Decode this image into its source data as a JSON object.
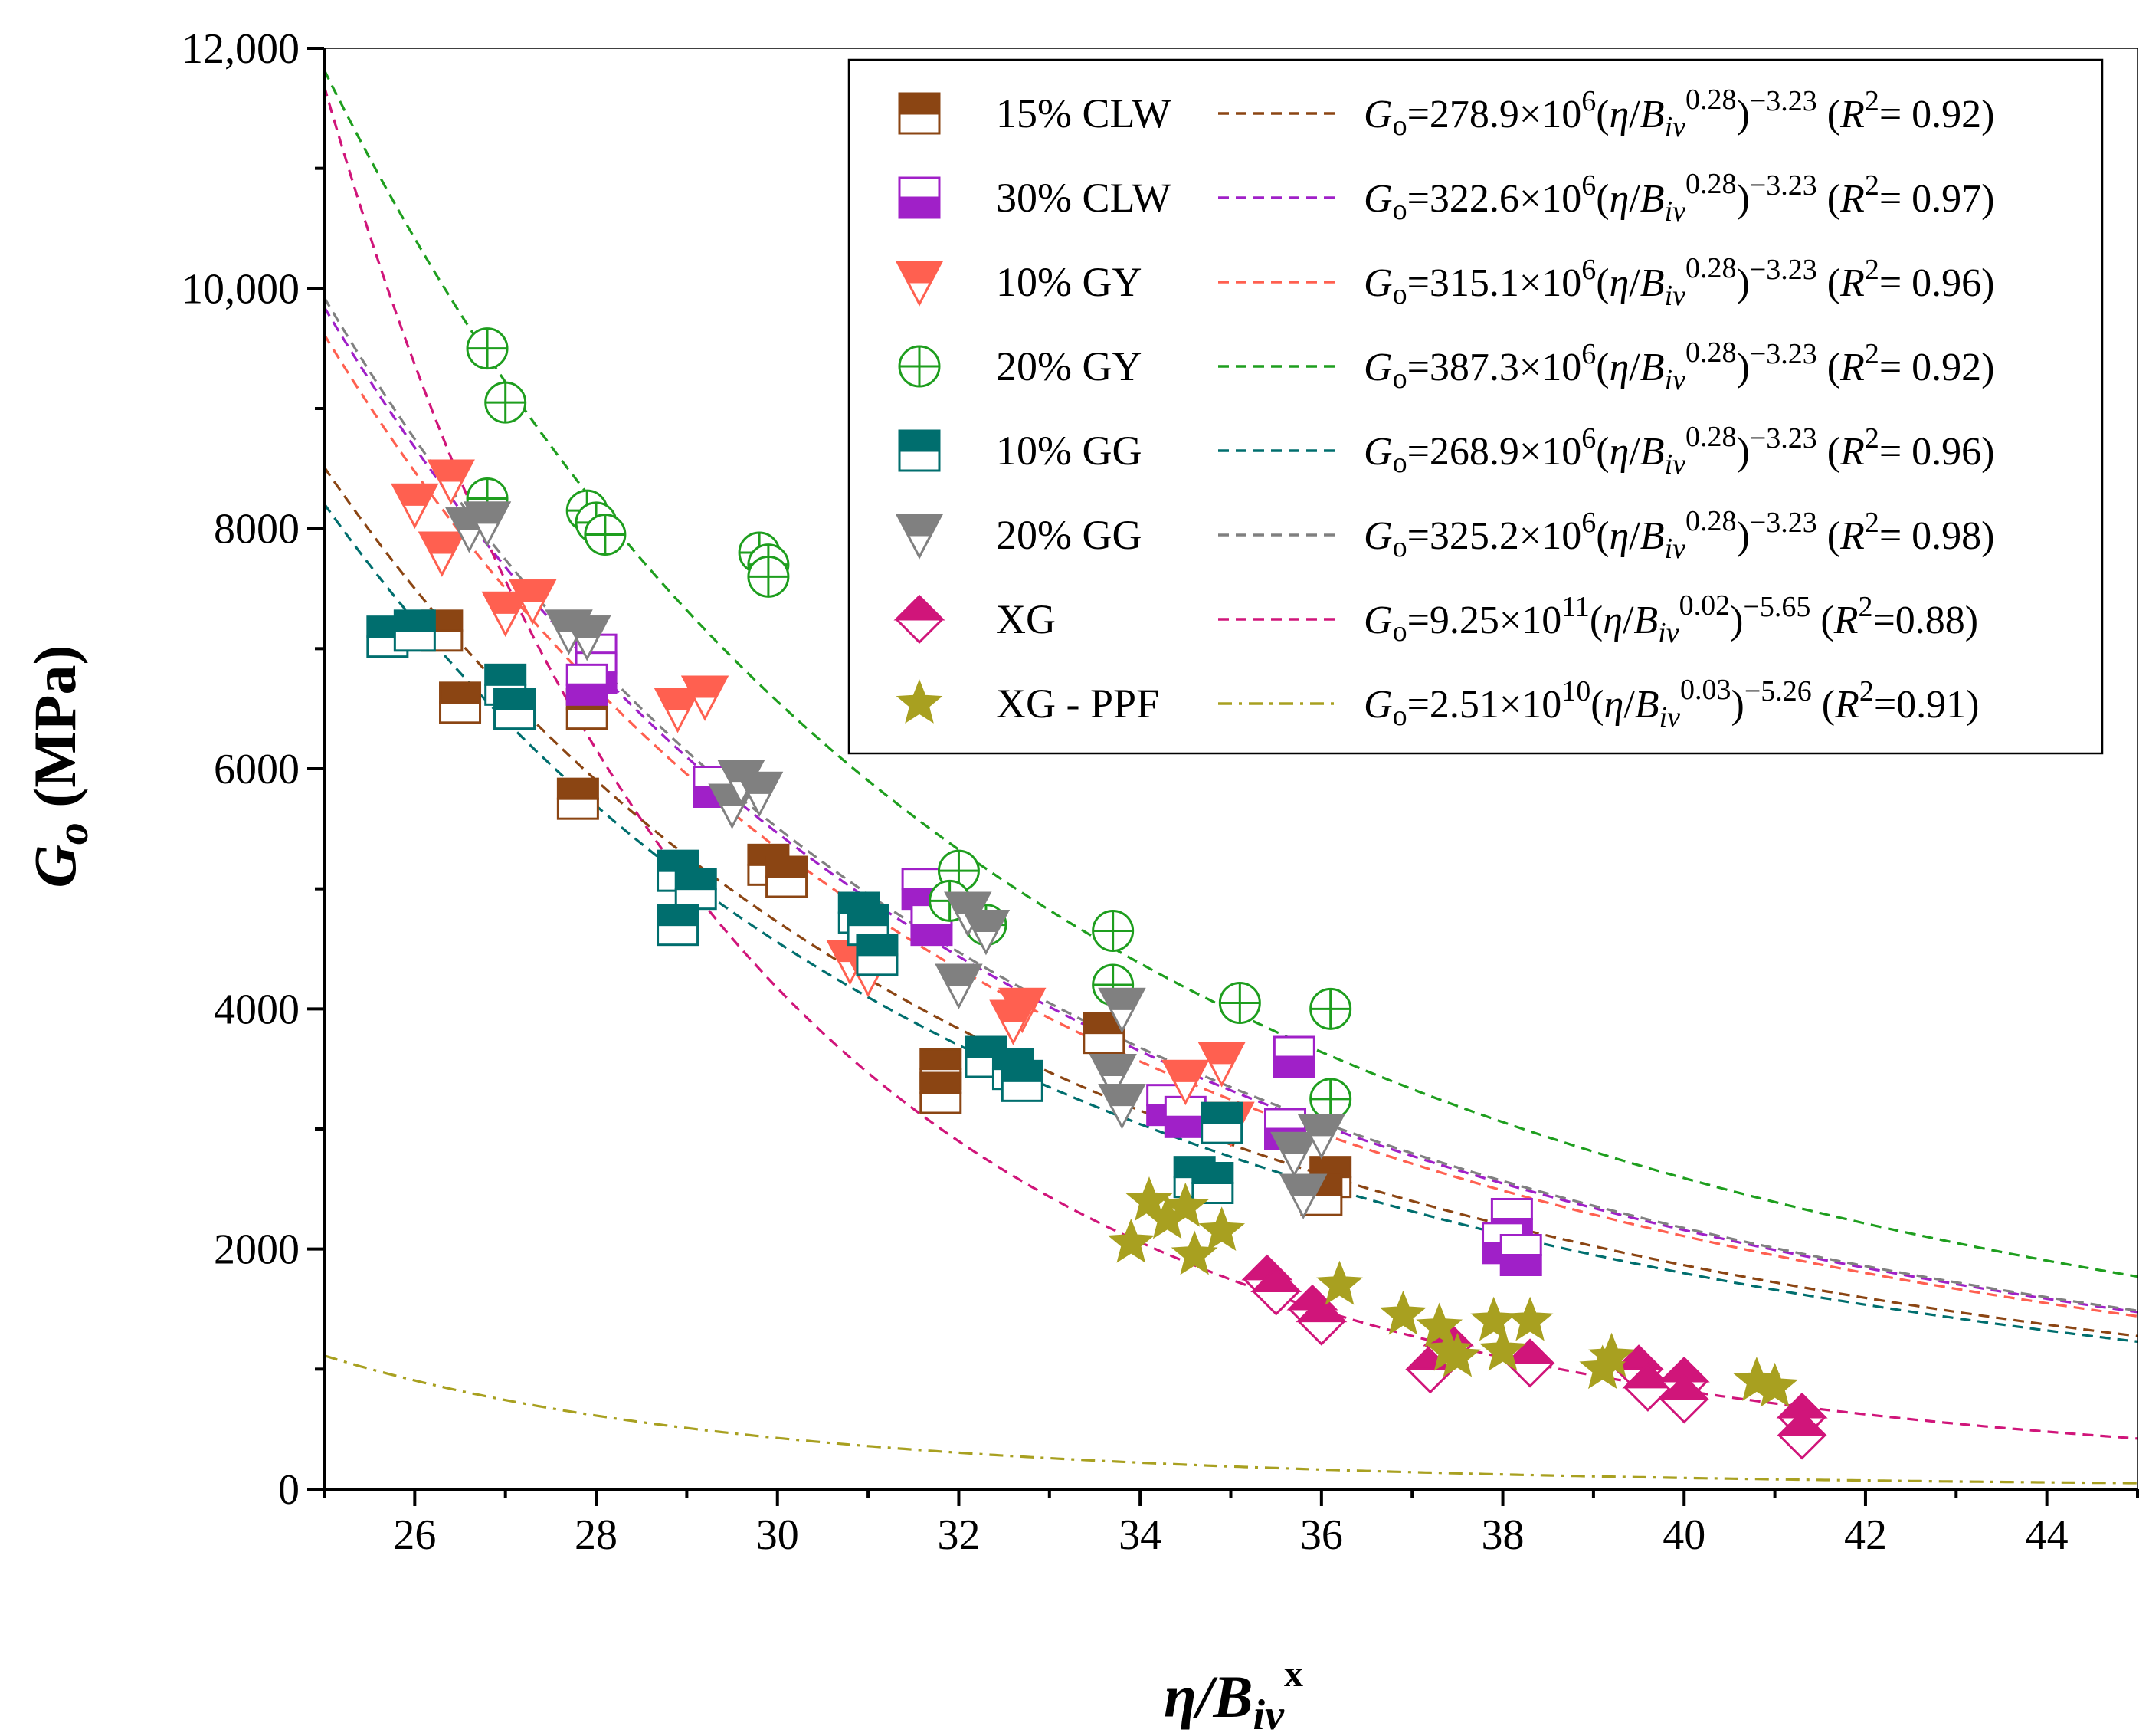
{
  "chart_data": {
    "type": "scatter",
    "title": "",
    "xlabel": "η/B_iv^x",
    "ylabel": "G_o (MPa)",
    "xlim": [
      25,
      45
    ],
    "ylim": [
      0,
      12000
    ],
    "xticks": [
      "26",
      "28",
      "30",
      "32",
      "34",
      "36",
      "38",
      "40",
      "42",
      "44"
    ],
    "yticks": [
      "0",
      "2000",
      "4000",
      "6000",
      "8000",
      "10,000",
      "12,000"
    ],
    "legend_position": "top-right",
    "series": [
      {
        "name": "15% CLW",
        "color": "#8B4513",
        "marker": "square-half",
        "coef": 278900000.0,
        "exp": -3.23,
        "equation": "Go=278.9×10^6(η/Biv^0.28)^-3.23",
        "r2": "(R²= 0.92)",
        "points": [
          [
            26.3,
            7150
          ],
          [
            26.5,
            6550
          ],
          [
            27.9,
            6500
          ],
          [
            27.8,
            5750
          ],
          [
            29.9,
            5200
          ],
          [
            30.1,
            5100
          ],
          [
            31.8,
            3500
          ],
          [
            31.8,
            3300
          ],
          [
            33.6,
            3800
          ],
          [
            36.1,
            2600
          ],
          [
            36.0,
            2450
          ]
        ]
      },
      {
        "name": "30% CLW",
        "color": "#A020C8",
        "marker": "square-half-bottom",
        "coef": 322600000.0,
        "exp": -3.23,
        "equation": "Go=322.6×10^6(η/Biv^0.28)^-3.23",
        "r2": "(R²= 0.97)",
        "points": [
          [
            28.0,
            6950
          ],
          [
            28.0,
            6800
          ],
          [
            27.9,
            6700
          ],
          [
            29.3,
            5850
          ],
          [
            31.6,
            5000
          ],
          [
            31.7,
            4700
          ],
          [
            34.3,
            3200
          ],
          [
            34.5,
            3100
          ],
          [
            35.7,
            3600
          ],
          [
            35.6,
            3000
          ],
          [
            38.1,
            2250
          ],
          [
            38.0,
            2050
          ],
          [
            38.2,
            1950
          ]
        ]
      },
      {
        "name": "10% GY",
        "color": "#FF6050",
        "marker": "triangle-down-half",
        "coef": 315100000.0,
        "exp": -3.23,
        "equation": "Go=315.1×10^6(η/Biv^0.28)^-3.23",
        "r2": "(R²= 0.96)",
        "points": [
          [
            26.0,
            8200
          ],
          [
            26.4,
            8400
          ],
          [
            26.3,
            7800
          ],
          [
            27.0,
            7300
          ],
          [
            27.3,
            7400
          ],
          [
            28.9,
            6500
          ],
          [
            29.2,
            6600
          ],
          [
            30.8,
            4400
          ],
          [
            31.0,
            4300
          ],
          [
            32.7,
            4000
          ],
          [
            32.6,
            3900
          ],
          [
            34.5,
            3400
          ],
          [
            34.9,
            3550
          ],
          [
            35.0,
            3050
          ]
        ]
      },
      {
        "name": "20% GY",
        "color": "#1E9E1E",
        "marker": "circle-plus",
        "coef": 387300000.0,
        "exp": -3.23,
        "equation": "Go=387.3×10^6(η/Biv^0.28)^-3.23",
        "r2": "(R²= 0.92)",
        "points": [
          [
            26.8,
            9500
          ],
          [
            27.0,
            9050
          ],
          [
            26.8,
            8250
          ],
          [
            27.9,
            8150
          ],
          [
            28.0,
            8050
          ],
          [
            28.1,
            7950
          ],
          [
            29.8,
            7800
          ],
          [
            29.9,
            7700
          ],
          [
            29.9,
            7600
          ],
          [
            32.0,
            5150
          ],
          [
            31.9,
            4900
          ],
          [
            32.3,
            4700
          ],
          [
            33.7,
            4650
          ],
          [
            33.7,
            4200
          ],
          [
            35.1,
            4050
          ],
          [
            36.1,
            4000
          ],
          [
            36.1,
            3250
          ]
        ]
      },
      {
        "name": "10% GG",
        "color": "#006E6E",
        "marker": "square-half",
        "coef": 268900000.0,
        "exp": -3.23,
        "equation": "Go=268.9×10^6(η/Biv^0.28)^-3.23",
        "r2": "(R²= 0.96)",
        "points": [
          [
            25.7,
            7100
          ],
          [
            26.0,
            7150
          ],
          [
            27.0,
            6700
          ],
          [
            27.1,
            6500
          ],
          [
            28.9,
            5150
          ],
          [
            29.1,
            5000
          ],
          [
            28.9,
            4700
          ],
          [
            30.9,
            4800
          ],
          [
            31.0,
            4700
          ],
          [
            31.1,
            4450
          ],
          [
            32.3,
            3600
          ],
          [
            32.6,
            3500
          ],
          [
            32.7,
            3400
          ],
          [
            34.6,
            2600
          ],
          [
            34.8,
            2550
          ],
          [
            34.9,
            3050
          ]
        ]
      },
      {
        "name": "20% GG",
        "color": "#808080",
        "marker": "triangle-down-half",
        "coef": 325200000.0,
        "exp": -3.23,
        "equation": "Go=325.2×10^6(η/Biv^0.28)^-3.23",
        "r2": "(R²= 0.98)",
        "points": [
          [
            26.6,
            8000
          ],
          [
            26.8,
            8050
          ],
          [
            27.7,
            7150
          ],
          [
            27.9,
            7100
          ],
          [
            29.5,
            5700
          ],
          [
            29.6,
            5900
          ],
          [
            29.8,
            5800
          ],
          [
            32.0,
            4200
          ],
          [
            32.1,
            4800
          ],
          [
            32.3,
            4650
          ],
          [
            33.7,
            3450
          ],
          [
            33.8,
            3200
          ],
          [
            33.8,
            4000
          ],
          [
            35.7,
            2800
          ],
          [
            35.8,
            2450
          ],
          [
            36.0,
            2950
          ]
        ]
      },
      {
        "name": "XG",
        "color": "#D0157A",
        "marker": "diamond-half",
        "coef": 925000000000.0,
        "exp": -5.65,
        "equation": "Go=9.25×10^11(η/Biv^0.02)^-5.65",
        "r2": "(R²=0.88)",
        "points": [
          [
            35.4,
            1750
          ],
          [
            35.5,
            1650
          ],
          [
            35.9,
            1500
          ],
          [
            36.0,
            1400
          ],
          [
            37.2,
            1000
          ],
          [
            37.4,
            1200
          ],
          [
            38.3,
            1050
          ],
          [
            39.5,
            1000
          ],
          [
            39.6,
            850
          ],
          [
            40.0,
            900
          ],
          [
            40.0,
            750
          ],
          [
            41.3,
            600
          ],
          [
            41.3,
            450
          ]
        ]
      },
      {
        "name": "XG - PPF",
        "color": "#A8A020",
        "marker": "star",
        "coef": 25100000000.0,
        "exp": -5.26,
        "equation": "Go=2.51×10^10(η/Biv^0.03)^-5.26",
        "r2": "(R²=0.91)",
        "points": [
          [
            33.9,
            2050
          ],
          [
            34.1,
            2400
          ],
          [
            34.3,
            2250
          ],
          [
            34.5,
            2350
          ],
          [
            34.6,
            1950
          ],
          [
            34.9,
            2150
          ],
          [
            36.2,
            1700
          ],
          [
            36.9,
            1450
          ],
          [
            37.3,
            1350
          ],
          [
            37.4,
            1150
          ],
          [
            37.5,
            1100
          ],
          [
            37.9,
            1400
          ],
          [
            38.0,
            1150
          ],
          [
            38.3,
            1400
          ],
          [
            39.1,
            1000
          ],
          [
            39.2,
            1100
          ],
          [
            40.8,
            900
          ],
          [
            41.0,
            850
          ]
        ]
      }
    ]
  }
}
